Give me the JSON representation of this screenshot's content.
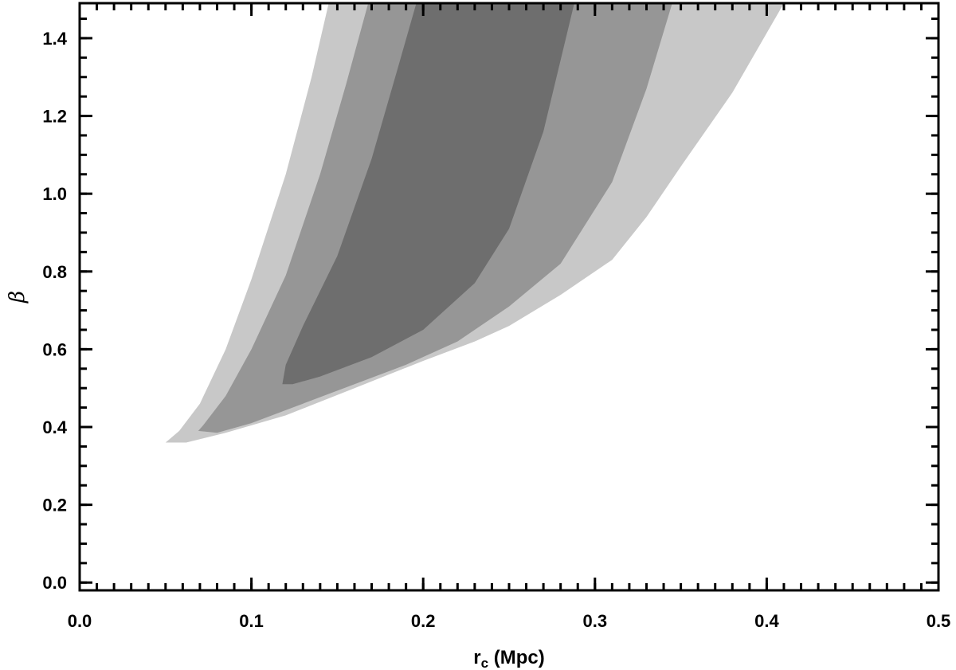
{
  "chart_data": {
    "type": "area",
    "chart_kind": "confidence contours",
    "xlabel": {
      "main": "r",
      "sub": "c",
      "rest": " (Mpc)"
    },
    "ylabel": "β",
    "xlim": [
      0.0,
      0.5
    ],
    "ylim": [
      -0.02,
      1.49
    ],
    "x_ticks": [
      "0.0",
      "0.1",
      "0.2",
      "0.3",
      "0.4",
      "0.5"
    ],
    "x_tick_values": [
      0.0,
      0.1,
      0.2,
      0.3,
      0.4,
      0.5
    ],
    "y_ticks": [
      "0.0",
      "0.2",
      "0.4",
      "0.6",
      "0.8",
      "1.0",
      "1.2",
      "1.4"
    ],
    "y_tick_values": [
      0.0,
      0.2,
      0.4,
      0.6,
      0.8,
      1.0,
      1.2,
      1.4
    ],
    "x_minor_step": 0.01,
    "y_minor_step": 0.05,
    "grid": false,
    "legend": "none",
    "contours": [
      {
        "level": "outer",
        "color": "#c8c8c8",
        "points": [
          [
            0.05,
            0.36
          ],
          [
            0.062,
            0.36
          ],
          [
            0.085,
            0.385
          ],
          [
            0.12,
            0.43
          ],
          [
            0.16,
            0.5
          ],
          [
            0.2,
            0.57
          ],
          [
            0.23,
            0.62
          ],
          [
            0.25,
            0.66
          ],
          [
            0.28,
            0.74
          ],
          [
            0.31,
            0.83
          ],
          [
            0.33,
            0.94
          ],
          [
            0.35,
            1.07
          ],
          [
            0.38,
            1.26
          ],
          [
            0.41,
            1.49
          ],
          [
            0.145,
            1.49
          ],
          [
            0.135,
            1.3
          ],
          [
            0.12,
            1.05
          ],
          [
            0.1,
            0.78
          ],
          [
            0.085,
            0.6
          ],
          [
            0.07,
            0.46
          ],
          [
            0.058,
            0.39
          ]
        ]
      },
      {
        "level": "middle",
        "color": "#969696",
        "points": [
          [
            0.069,
            0.39
          ],
          [
            0.08,
            0.385
          ],
          [
            0.1,
            0.41
          ],
          [
            0.13,
            0.46
          ],
          [
            0.16,
            0.51
          ],
          [
            0.19,
            0.56
          ],
          [
            0.22,
            0.62
          ],
          [
            0.25,
            0.71
          ],
          [
            0.28,
            0.82
          ],
          [
            0.31,
            1.03
          ],
          [
            0.33,
            1.27
          ],
          [
            0.345,
            1.49
          ],
          [
            0.168,
            1.49
          ],
          [
            0.155,
            1.28
          ],
          [
            0.14,
            1.05
          ],
          [
            0.12,
            0.79
          ],
          [
            0.1,
            0.6
          ],
          [
            0.085,
            0.48
          ],
          [
            0.072,
            0.405
          ]
        ]
      },
      {
        "level": "inner",
        "color": "#6e6e6e",
        "points": [
          [
            0.118,
            0.51
          ],
          [
            0.124,
            0.51
          ],
          [
            0.14,
            0.53
          ],
          [
            0.17,
            0.58
          ],
          [
            0.2,
            0.65
          ],
          [
            0.23,
            0.77
          ],
          [
            0.25,
            0.91
          ],
          [
            0.27,
            1.16
          ],
          [
            0.288,
            1.49
          ],
          [
            0.196,
            1.49
          ],
          [
            0.185,
            1.32
          ],
          [
            0.17,
            1.09
          ],
          [
            0.15,
            0.84
          ],
          [
            0.13,
            0.66
          ],
          [
            0.12,
            0.56
          ]
        ]
      }
    ]
  }
}
